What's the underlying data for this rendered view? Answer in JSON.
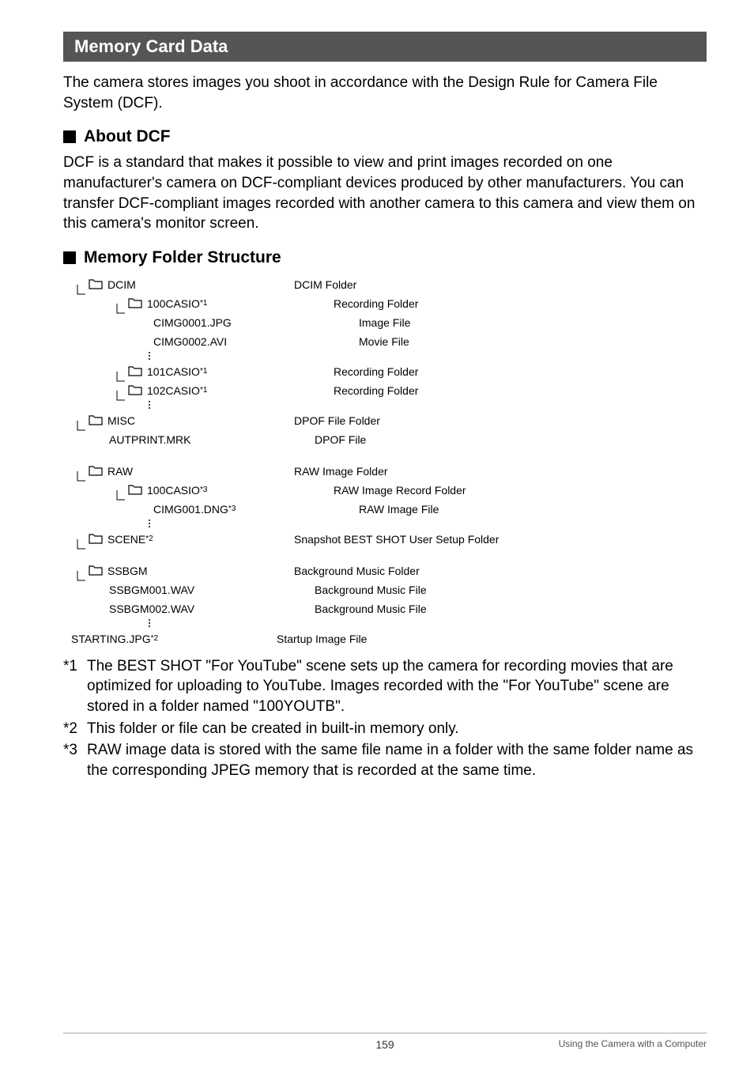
{
  "section_title": "Memory Card Data",
  "intro": "The camera stores images you shoot in accordance with the Design Rule for Camera File System (DCF).",
  "about_heading": "About DCF",
  "about_body": "DCF is a standard that makes it possible to view and print images recorded on one manufacturer's camera on DCF-compliant devices produced by other manufacturers. You can transfer DCF-compliant images recorded with another camera to this camera and view them on this camera's monitor screen.",
  "folder_heading": "Memory Folder Structure",
  "tree": [
    {
      "indent": 0,
      "icon": true,
      "label": "DCIM",
      "sup": "",
      "desc": "DCIM Folder"
    },
    {
      "indent": 1,
      "icon": true,
      "label": "100CASIO ",
      "sup": "*1",
      "desc": "Recording Folder"
    },
    {
      "indent": 2,
      "icon": false,
      "label": "CIMG0001.JPG",
      "sup": "",
      "desc": "Image File"
    },
    {
      "indent": 2,
      "icon": false,
      "label": "CIMG0002.AVI",
      "sup": "",
      "desc": "Movie File"
    },
    {
      "dots": true
    },
    {
      "indent": 1,
      "icon": true,
      "label": "101CASIO ",
      "sup": "*1",
      "desc": "Recording Folder"
    },
    {
      "indent": 1,
      "icon": true,
      "label": "102CASIO ",
      "sup": "*1",
      "desc": "Recording Folder"
    },
    {
      "dots": true
    },
    {
      "indent": 0,
      "icon": true,
      "label": "MISC",
      "sup": "",
      "desc": "DPOF File Folder"
    },
    {
      "indent": 2,
      "icon": false,
      "label": "AUTPRINT.MRK",
      "sup": "",
      "desc": "DPOF File",
      "noindent_text": true
    },
    {
      "spacer": true
    },
    {
      "indent": 0,
      "icon": true,
      "label": "RAW",
      "sup": "",
      "desc": "RAW Image Folder"
    },
    {
      "indent": 1,
      "icon": true,
      "label": "100CASIO ",
      "sup": "*3",
      "desc": "RAW Image Record Folder"
    },
    {
      "indent": 2,
      "icon": false,
      "label": "CIMG001.DNG ",
      "sup": "*3",
      "desc": "RAW Image File"
    },
    {
      "dots": true
    },
    {
      "indent": 0,
      "icon": true,
      "label": "SCENE ",
      "sup": "*2",
      "desc": "Snapshot BEST SHOT User Setup Folder"
    },
    {
      "spacer": true
    },
    {
      "indent": 0,
      "icon": true,
      "label": "SSBGM",
      "sup": "",
      "desc": "Background Music Folder"
    },
    {
      "indent": 2,
      "icon": false,
      "label": "SSBGM001.WAV",
      "sup": "",
      "desc": "Background Music File",
      "noindent_text": true
    },
    {
      "indent": 2,
      "icon": false,
      "label": "SSBGM002.WAV",
      "sup": "",
      "desc": "Background Music File",
      "noindent_text": true
    },
    {
      "dots": true
    },
    {
      "indent": -1,
      "icon": false,
      "label": "STARTING.JPG ",
      "sup": "*2",
      "desc": "Startup Image File"
    }
  ],
  "footnotes": [
    {
      "mark": "*1",
      "text": "The BEST SHOT \"For YouTube\" scene sets up the camera for recording movies that are optimized for uploading to YouTube. Images recorded with the \"For YouTube\" scene are stored in a folder named \"100YOUTB\"."
    },
    {
      "mark": "*2",
      "text": "This folder or file can be created in built-in memory only."
    },
    {
      "mark": "*3",
      "text": "RAW image data is stored with the same file name in a folder with the same folder name as the corresponding JPEG memory that is recorded at the same time."
    }
  ],
  "footer": {
    "page": "159",
    "right": "Using the Camera with a Computer"
  },
  "colors": {
    "header_bg": "#555555",
    "header_fg": "#ffffff",
    "text": "#000000",
    "rule": "#aaaaaa"
  }
}
